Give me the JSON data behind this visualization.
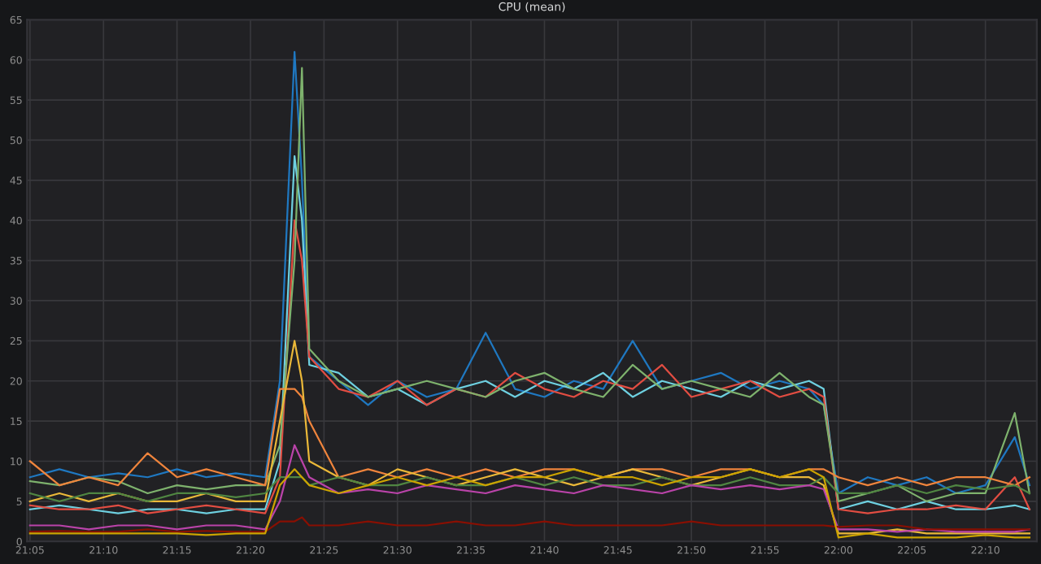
{
  "chart_data": {
    "type": "line",
    "title": "CPU (mean)",
    "x": [
      21.0833,
      21.1167,
      21.15,
      21.1833,
      21.2167,
      21.25,
      21.2833,
      21.3167,
      21.35,
      21.3667,
      21.3833,
      21.3917,
      21.4,
      21.4333,
      21.4667,
      21.5,
      21.5333,
      21.5667,
      21.6,
      21.6333,
      21.6667,
      21.7,
      21.7333,
      21.7667,
      21.8,
      21.8333,
      21.8667,
      21.9,
      21.9333,
      21.9667,
      21.9833,
      22.0,
      22.0333,
      22.0667,
      22.1,
      22.1333,
      22.1667,
      22.2,
      22.2167
    ],
    "series": [
      {
        "color": "#1f78c1",
        "values": [
          8,
          9,
          8,
          8.5,
          8,
          9,
          8,
          8.5,
          8,
          20,
          61,
          45,
          23,
          20,
          17,
          20,
          18,
          19,
          26,
          19,
          18,
          20,
          19,
          25,
          19,
          20,
          21,
          19,
          20,
          19,
          17,
          6,
          8,
          7,
          8,
          6,
          7,
          13,
          7
        ]
      },
      {
        "color": "#6ed0e0",
        "values": [
          4,
          4.5,
          4,
          3.5,
          4,
          4,
          3.5,
          4,
          4,
          10,
          48,
          40,
          22,
          21,
          18,
          19,
          17,
          19,
          20,
          18,
          20,
          19,
          21,
          18,
          20,
          19,
          18,
          20,
          19,
          20,
          19,
          4,
          5,
          4,
          5,
          4,
          4,
          4.5,
          4
        ]
      },
      {
        "color": "#e24d42",
        "values": [
          4.5,
          4,
          4,
          4.5,
          3.5,
          4,
          4.5,
          4,
          3.5,
          8,
          40,
          35,
          23,
          19,
          18,
          20,
          17,
          19,
          18,
          21,
          19,
          18,
          20,
          19,
          22,
          18,
          19,
          20,
          18,
          19,
          18,
          4,
          3.5,
          4,
          4,
          4.5,
          4,
          8,
          4
        ]
      },
      {
        "color": "#7eb26d",
        "values": [
          7.5,
          7,
          8,
          7.5,
          6,
          7,
          6.5,
          7,
          7,
          12,
          35,
          59,
          24,
          20,
          18,
          19,
          20,
          19,
          18,
          20,
          21,
          19,
          18,
          22,
          19,
          20,
          19,
          18,
          21,
          18,
          17,
          5,
          6,
          7,
          5,
          6,
          6,
          16,
          6
        ]
      },
      {
        "color": "#ef843c",
        "values": [
          10,
          7,
          8,
          7,
          11,
          8,
          9,
          8,
          7,
          19,
          19,
          18,
          15,
          8,
          9,
          8,
          9,
          8,
          9,
          8,
          9,
          9,
          8,
          9,
          9,
          8,
          9,
          9,
          8,
          9,
          9,
          8,
          7,
          8,
          7,
          8,
          8,
          7,
          8
        ]
      },
      {
        "color": "#eab839",
        "values": [
          5,
          6,
          5,
          6,
          5,
          5,
          6,
          5,
          5,
          15,
          25,
          20,
          10,
          8,
          7,
          9,
          8,
          7,
          8,
          9,
          8,
          7,
          8,
          9,
          8,
          7,
          8,
          9,
          8,
          8,
          7,
          1,
          1,
          1.5,
          1,
          1,
          1,
          1,
          1
        ]
      },
      {
        "color": "#508642",
        "values": [
          6,
          5,
          6,
          6,
          5,
          6,
          6,
          5.5,
          6,
          8,
          8,
          8,
          7,
          8,
          7,
          7,
          8,
          7,
          7,
          8,
          7,
          8,
          7,
          7,
          8,
          7,
          7,
          8,
          7,
          7,
          8,
          6,
          6,
          7,
          6,
          7,
          6.5,
          7,
          6
        ]
      },
      {
        "color": "#ba43a9",
        "values": [
          2,
          2,
          1.5,
          2,
          2,
          1.5,
          2,
          2,
          1.5,
          5,
          12,
          10,
          8,
          6,
          6.5,
          6,
          7,
          6.5,
          6,
          7,
          6.5,
          6,
          7,
          6.5,
          6,
          7,
          6.5,
          7,
          6.5,
          7,
          6.5,
          1.5,
          1.5,
          1.2,
          1.5,
          1.2,
          1.2,
          1.2,
          1.5
        ]
      },
      {
        "color": "#890f02",
        "values": [
          1.2,
          1.3,
          1.2,
          1.2,
          1.5,
          1.2,
          1.3,
          1.2,
          1.2,
          2.5,
          2.5,
          3,
          2,
          2,
          2.5,
          2,
          2,
          2.5,
          2,
          2,
          2.5,
          2,
          2,
          2,
          2,
          2.5,
          2,
          2,
          2,
          2,
          2,
          1.8,
          2,
          2,
          1.5,
          1.5,
          1.5,
          1.5,
          1.5
        ]
      },
      {
        "color": "#cca300",
        "values": [
          1,
          1,
          1,
          1,
          1,
          1,
          0.8,
          1,
          1,
          7,
          9,
          8,
          7,
          6,
          7,
          8,
          7,
          8,
          7,
          8,
          8,
          9,
          8,
          8,
          7,
          8,
          8,
          9,
          8,
          9,
          8,
          0.5,
          1,
          0.5,
          0.5,
          0.5,
          0.8,
          0.5,
          0.5
        ]
      }
    ],
    "xlim": [
      21.08,
      22.225
    ],
    "xticks": [
      {
        "value": 21.0833,
        "label": "21:05"
      },
      {
        "value": 21.1667,
        "label": "21:10"
      },
      {
        "value": 21.25,
        "label": "21:15"
      },
      {
        "value": 21.3333,
        "label": "21:20"
      },
      {
        "value": 21.4167,
        "label": "21:25"
      },
      {
        "value": 21.5,
        "label": "21:30"
      },
      {
        "value": 21.5833,
        "label": "21:35"
      },
      {
        "value": 21.6667,
        "label": "21:40"
      },
      {
        "value": 21.75,
        "label": "21:45"
      },
      {
        "value": 21.8333,
        "label": "21:50"
      },
      {
        "value": 21.9167,
        "label": "21:55"
      },
      {
        "value": 22.0,
        "label": "22:00"
      },
      {
        "value": 22.0833,
        "label": "22:05"
      },
      {
        "value": 22.1667,
        "label": "22:10"
      }
    ],
    "ylim": [
      0,
      65
    ],
    "yticks": [
      0,
      5,
      10,
      15,
      20,
      25,
      30,
      35,
      40,
      45,
      50,
      55,
      60,
      65
    ],
    "grid": true,
    "marker": "none",
    "line_style": "solid"
  }
}
